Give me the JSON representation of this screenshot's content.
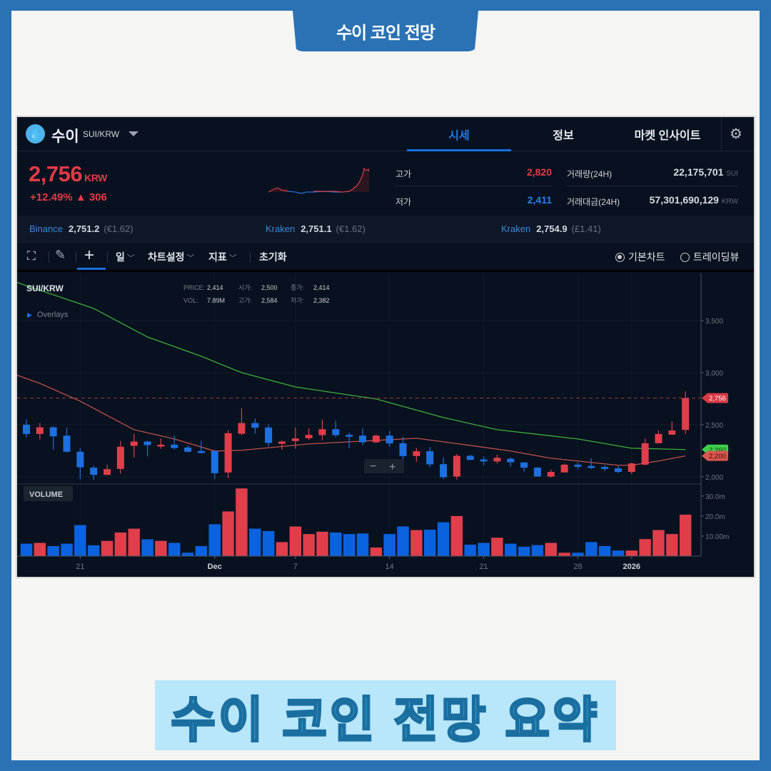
{
  "banner": {
    "title": "수이 코인 전망"
  },
  "footer": {
    "title": "수이 코인 전망 요약"
  },
  "colors": {
    "up": "#e03e4a",
    "down": "#1e6fe0",
    "ma_long": "#3fae3a",
    "ma_short": "#c0514a",
    "accent": "#1f7ae8"
  },
  "header": {
    "coin_name": "수이",
    "pair": "SUI/KRW",
    "logo_icon": "sui-droplet-icon",
    "tabs": [
      {
        "label": "시세",
        "active": true
      },
      {
        "label": "정보",
        "active": false
      },
      {
        "label": "마켓 인사이트",
        "active": false
      }
    ]
  },
  "quote": {
    "price": "2,756",
    "currency": "KRW",
    "change_pct": "+12.49%",
    "change_abs": "▲ 306",
    "stats": [
      {
        "label": "고가",
        "value": "2,820"
      },
      {
        "label": "저가",
        "value": "2,411"
      }
    ],
    "volume": [
      {
        "label": "거래량(24H)",
        "value": "22,175,701",
        "unit": "SUI"
      },
      {
        "label": "거래대금(24H)",
        "value": "57,301,690,129",
        "unit": "KRW"
      }
    ]
  },
  "exchanges": [
    {
      "name": "Binance",
      "price": "2,751.2",
      "fiat": "(€1.62)"
    },
    {
      "name": "Kraken",
      "price": "2,751.1",
      "fiat": "(€1.62)"
    },
    {
      "name": "Kraken",
      "price": "2,754.9",
      "fiat": "(£1.41)"
    }
  ],
  "toolbar": {
    "interval": "일",
    "settings": "차트설정",
    "indicators": "지표",
    "reset": "초기화",
    "basic_chart": "기본차트",
    "tradingview": "트레이딩뷰",
    "basic_selected": true
  },
  "legend": {
    "symbol": "SUI/KRW",
    "overlays": "Overlays",
    "price_label": "PRICE:",
    "price": "2,414",
    "open_label": "시가:",
    "open": "2,500",
    "close_label": "종가:",
    "close": "2,414",
    "vol_label": "VOL:",
    "vol": "7.89M",
    "high_label": "고가:",
    "high": "2,584",
    "low_label": "저가:",
    "low": "2,382"
  },
  "zoom_controls": {
    "minus": "−",
    "plus": "+"
  },
  "chart_data": {
    "type": "candlestick",
    "ylim": [
      1930,
      3940
    ],
    "y_ticks": [
      "3,500",
      "3,000",
      "2,500",
      "2,000"
    ],
    "y_tick_values": [
      3500,
      3000,
      2500,
      2000
    ],
    "volume_label": "VOLUME",
    "volume_ylim": [
      0,
      36
    ],
    "volume_ticks": [
      "30.0m",
      "20.0m",
      "10.00m"
    ],
    "volume_tick_values": [
      30,
      20,
      10
    ],
    "x_ticks": [
      {
        "label": "21",
        "date": "2025-11-21"
      },
      {
        "label": "Dec",
        "date": "2025-12-01"
      },
      {
        "label": "7",
        "date": "2025-12-07"
      },
      {
        "label": "14",
        "date": "2025-12-14"
      },
      {
        "label": "21",
        "date": "2025-12-21"
      },
      {
        "label": "28",
        "date": "2025-12-28"
      },
      {
        "label": "2026",
        "date": "2026-01-01"
      }
    ],
    "first_date": "2025-11-17",
    "last_price": {
      "value": 2756,
      "label": "2,756"
    },
    "ma_labels": [
      {
        "value": 2260.9,
        "label": "2,260.9",
        "color": "#3fcf4a"
      },
      {
        "value": 2200.1,
        "label": "2,200.1",
        "color": "#d9574f"
      }
    ],
    "candles": [
      [
        2500,
        2551,
        2379,
        2411
      ],
      [
        2411,
        2516,
        2356,
        2475
      ],
      [
        2475,
        2486,
        2260,
        2388
      ],
      [
        2395,
        2471,
        2235,
        2240
      ],
      [
        2240,
        2274,
        1977,
        2091
      ],
      [
        2087,
        2105,
        1968,
        2018
      ],
      [
        2018,
        2114,
        2014,
        2073
      ],
      [
        2075,
        2345,
        2029,
        2288
      ],
      [
        2297,
        2413,
        2185,
        2338
      ],
      [
        2338,
        2345,
        2197,
        2304
      ],
      [
        2290,
        2368,
        2269,
        2308
      ],
      [
        2308,
        2395,
        2262,
        2276
      ],
      [
        2281,
        2303,
        2235,
        2240
      ],
      [
        2247,
        2345,
        2224,
        2228
      ],
      [
        2247,
        2250,
        1977,
        2034
      ],
      [
        2041,
        2447,
        1984,
        2418
      ],
      [
        2413,
        2658,
        2400,
        2516
      ],
      [
        2516,
        2560,
        2413,
        2471
      ],
      [
        2473,
        2502,
        2292,
        2324
      ],
      [
        2317,
        2349,
        2258,
        2338
      ],
      [
        2343,
        2475,
        2269,
        2368
      ],
      [
        2370,
        2464,
        2354,
        2402
      ],
      [
        2400,
        2551,
        2349,
        2457
      ],
      [
        2457,
        2537,
        2379,
        2400
      ],
      [
        2402,
        2423,
        2274,
        2384
      ],
      [
        2395,
        2464,
        2303,
        2331
      ],
      [
        2331,
        2406,
        2324,
        2395
      ],
      [
        2395,
        2440,
        2288,
        2320
      ],
      [
        2322,
        2384,
        2137,
        2199
      ],
      [
        2199,
        2276,
        2144,
        2245
      ],
      [
        2245,
        2286,
        2091,
        2119
      ],
      [
        2121,
        2185,
        1977,
        1995
      ],
      [
        2002,
        2219,
        1973,
        2201
      ],
      [
        2201,
        2212,
        2158,
        2162
      ],
      [
        2166,
        2194,
        2110,
        2147
      ],
      [
        2147,
        2212,
        2128,
        2182
      ],
      [
        2173,
        2185,
        2098,
        2139
      ],
      [
        2137,
        2137,
        2048,
        2087
      ],
      [
        2087,
        2094,
        2002,
        2002
      ],
      [
        2002,
        2070,
        1991,
        2046
      ],
      [
        2041,
        2125,
        2041,
        2116
      ],
      [
        2116,
        2137,
        2075,
        2096
      ],
      [
        2103,
        2178,
        2075,
        2084
      ],
      [
        2094,
        2110,
        2053,
        2075
      ],
      [
        2080,
        2105,
        2034,
        2046
      ],
      [
        2046,
        2137,
        2025,
        2128
      ],
      [
        2116,
        2368,
        2110,
        2322
      ],
      [
        2322,
        2445,
        2322,
        2411
      ],
      [
        2404,
        2532,
        2404,
        2445
      ],
      [
        2450,
        2820,
        2411,
        2756
      ]
    ],
    "volumes": [
      6.3,
      6.7,
      5.1,
      6.3,
      15.6,
      5.5,
      7.7,
      11.9,
      13.8,
      8.5,
      7.7,
      6.7,
      1.8,
      5.1,
      16.0,
      22.4,
      33.9,
      13.8,
      12.6,
      7.1,
      14.9,
      11.1,
      12.3,
      11.9,
      11.1,
      11.4,
      4.4,
      11.1,
      14.9,
      13.1,
      13.3,
      17.0,
      20.1,
      5.8,
      6.7,
      9.3,
      6.3,
      4.8,
      5.6,
      6.7,
      1.8,
      1.8,
      7.1,
      5.1,
      2.9,
      2.9,
      8.6,
      13.1,
      11.1,
      20.8
    ],
    "ma_long": [
      [
        -1,
        3880
      ],
      [
        5,
        3617
      ],
      [
        9,
        3343
      ],
      [
        13,
        3158
      ],
      [
        16,
        3000
      ],
      [
        20,
        2863
      ],
      [
        26,
        2747
      ],
      [
        31,
        2569
      ],
      [
        35,
        2452
      ],
      [
        41,
        2363
      ],
      [
        45,
        2274
      ],
      [
        49,
        2261
      ]
    ],
    "ma_short": [
      [
        -1,
        2990
      ],
      [
        1,
        2897
      ],
      [
        4,
        2726
      ],
      [
        8,
        2452
      ],
      [
        11,
        2363
      ],
      [
        14,
        2247
      ],
      [
        16,
        2254
      ],
      [
        21,
        2315
      ],
      [
        26,
        2349
      ],
      [
        29,
        2370
      ],
      [
        33,
        2301
      ],
      [
        36,
        2247
      ],
      [
        39,
        2178
      ],
      [
        44,
        2110
      ],
      [
        45,
        2110
      ],
      [
        47,
        2151
      ],
      [
        49,
        2200
      ]
    ]
  }
}
